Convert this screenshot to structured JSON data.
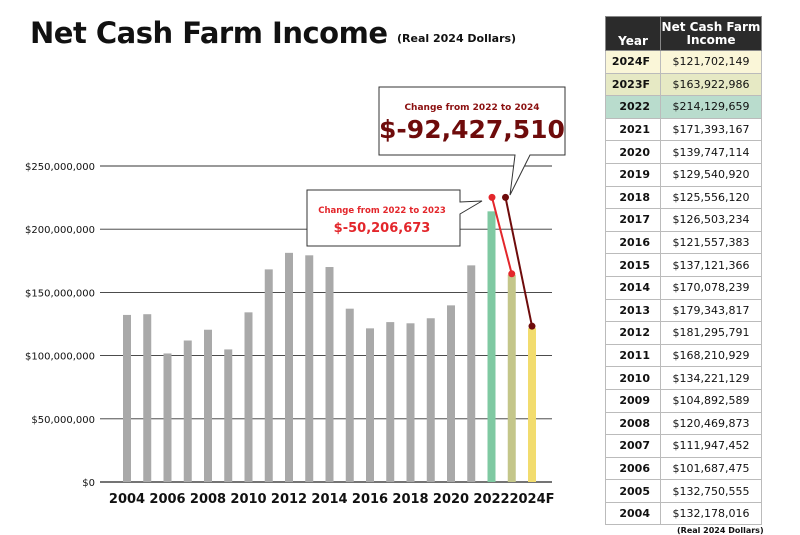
{
  "title": "Net Cash Farm Income",
  "subtitle": "(Real 2024 Dollars)",
  "table": {
    "headers": {
      "year": "Year",
      "value": "Net Cash Farm Income"
    },
    "rows": [
      {
        "year": "2024F",
        "value": "$121,702,149",
        "bg": "#faf6d8"
      },
      {
        "year": "2023F",
        "value": "$163,922,986",
        "bg": "#e6e9c4"
      },
      {
        "year": "2022",
        "value": "$214,129,659",
        "bg": "#b9dccd"
      },
      {
        "year": "2021",
        "value": "$171,393,167"
      },
      {
        "year": "2020",
        "value": "$139,747,114"
      },
      {
        "year": "2019",
        "value": "$129,540,920"
      },
      {
        "year": "2018",
        "value": "$125,556,120"
      },
      {
        "year": "2017",
        "value": "$126,503,234"
      },
      {
        "year": "2016",
        "value": "$121,557,383"
      },
      {
        "year": "2015",
        "value": "$137,121,366"
      },
      {
        "year": "2014",
        "value": "$170,078,239"
      },
      {
        "year": "2013",
        "value": "$179,343,817"
      },
      {
        "year": "2012",
        "value": "$181,295,791"
      },
      {
        "year": "2011",
        "value": "$168,210,929"
      },
      {
        "year": "2010",
        "value": "$134,221,129"
      },
      {
        "year": "2009",
        "value": "$104,892,589"
      },
      {
        "year": "2008",
        "value": "$120,469,873"
      },
      {
        "year": "2007",
        "value": "$111,947,452"
      },
      {
        "year": "2006",
        "value": "$101,687,475"
      },
      {
        "year": "2005",
        "value": "$132,750,555"
      },
      {
        "year": "2004",
        "value": "$132,178,016"
      }
    ],
    "footnote": "(Real 2024 Dollars)"
  },
  "chart_data": {
    "type": "bar",
    "categories": [
      "2004",
      "2005",
      "2006",
      "2007",
      "2008",
      "2009",
      "2010",
      "2011",
      "2012",
      "2013",
      "2014",
      "2015",
      "2016",
      "2017",
      "2018",
      "2019",
      "2020",
      "2021",
      "2022",
      "2023F",
      "2024F"
    ],
    "values": [
      132178016,
      132750555,
      101687475,
      111947452,
      120469873,
      104892589,
      134221129,
      168210929,
      181295791,
      179343817,
      170078239,
      137121366,
      121557383,
      126503234,
      125556120,
      129540920,
      139747114,
      171393167,
      214129659,
      163922986,
      121702149
    ],
    "colors": {
      "default": "#a9a9a9",
      "2022": "#7fc9a2",
      "2023F": "#c4c68a",
      "2024F": "#f2dc6e",
      "change_2023": "#e3262b",
      "change_2024": "#6e0b0b"
    },
    "ylim": [
      0,
      250000000
    ],
    "yticks": [
      0,
      50000000,
      100000000,
      150000000,
      200000000,
      250000000
    ],
    "ytick_labels": [
      "$0",
      "$50,000,000",
      "$100,000,000",
      "$150,000,000",
      "$200,000,000",
      "$250,000,000"
    ],
    "xtick_labels": [
      "2004",
      "2006",
      "2008",
      "2010",
      "2012",
      "2014",
      "2016",
      "2018",
      "2020",
      "2022",
      "2024F"
    ],
    "grid": true,
    "annotations": [
      {
        "label": "Change from 2022 to 2023",
        "value": "$-50,206,673"
      },
      {
        "label": "Change from 2022 to 2024",
        "value": "$-92,427,510"
      }
    ]
  }
}
